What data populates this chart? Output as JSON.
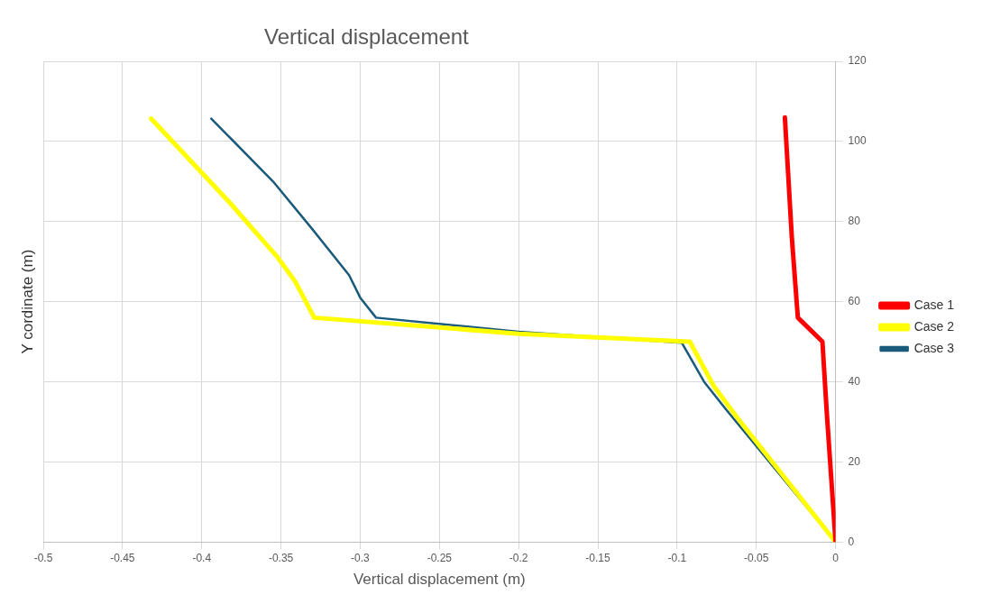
{
  "chart_data": {
    "type": "line",
    "title": "Vertical displacement",
    "xlabel": "Vertical displacement (m)",
    "ylabel": "Y cordinate (m)",
    "xlim": [
      -0.5,
      0
    ],
    "xticks": [
      -0.5,
      -0.45,
      -0.4,
      -0.35,
      -0.3,
      -0.25,
      -0.2,
      -0.15,
      -0.1,
      -0.05,
      0
    ],
    "ylim": [
      0,
      120
    ],
    "yticks": [
      0,
      20,
      40,
      60,
      80,
      100,
      120
    ],
    "grid": true,
    "legend": "right",
    "marker": "none",
    "line_style": "solid",
    "series": [
      {
        "name": "Case 1",
        "color": "#ff0000",
        "x": [
          -0.032,
          -0.0276,
          -0.0238,
          -0.0083,
          -0.0055,
          0
        ],
        "values": [
          106,
          76,
          56,
          50,
          32,
          0
        ]
      },
      {
        "name": "Case 2",
        "color": "#ffff00",
        "x": [
          -0.432,
          -0.383,
          -0.352,
          -0.341,
          -0.329,
          -0.2,
          -0.092,
          -0.077,
          -0.062,
          0
        ],
        "values": [
          105.7,
          85,
          71,
          65,
          56,
          52,
          50,
          39,
          31,
          0
        ]
      },
      {
        "name": "Case 3",
        "color": "#1a5a7a",
        "x": [
          -0.394,
          -0.355,
          -0.33,
          -0.307,
          -0.3,
          -0.29,
          -0.2,
          -0.097,
          -0.083,
          -0.069,
          0
        ],
        "values": [
          105.7,
          90,
          78,
          66.6,
          61,
          56,
          52.5,
          49.7,
          40,
          33,
          0
        ]
      }
    ]
  }
}
